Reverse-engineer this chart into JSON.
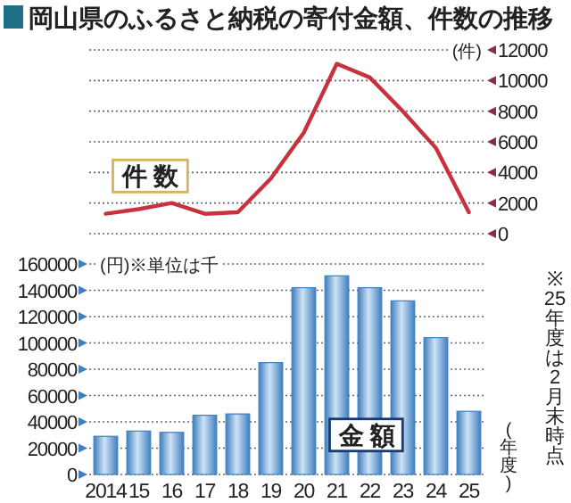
{
  "chart_data": [
    {
      "type": "line",
      "title": "岡山県のふるさと納税の寄付金額、件数の推移",
      "ylabel": "(件)",
      "categories": [
        "2014",
        "15",
        "16",
        "17",
        "18",
        "19",
        "20",
        "21",
        "22",
        "23",
        "24",
        "25"
      ],
      "series": [
        {
          "name": "件 数",
          "color": "#c8323c",
          "values": [
            1300,
            1600,
            2000,
            1300,
            1400,
            3600,
            6600,
            11100,
            10200,
            8000,
            5600,
            1400
          ]
        }
      ],
      "ylim": [
        0,
        12000
      ],
      "yticks": [
        0,
        2000,
        4000,
        6000,
        8000,
        10000,
        12000
      ],
      "grid": "y",
      "tick_labels": "y",
      "marker": "none"
    },
    {
      "type": "bar",
      "ylabel": "(円)※単位は千",
      "xlabel": "(年度)",
      "annotations": [
        "※25年度は2月末時点"
      ],
      "categories": [
        "2014",
        "15",
        "16",
        "17",
        "18",
        "19",
        "20",
        "21",
        "22",
        "23",
        "24",
        "25"
      ],
      "series": [
        {
          "name": "金 額",
          "color": "#3f7fc0",
          "values": [
            29000,
            33000,
            32000,
            45000,
            46000,
            85000,
            142000,
            151000,
            142000,
            132000,
            104000,
            48000
          ]
        }
      ],
      "ylim": [
        0,
        160000
      ],
      "yticks": [
        0,
        20000,
        40000,
        60000,
        80000,
        100000,
        120000,
        140000,
        160000
      ],
      "grid": "y"
    }
  ]
}
